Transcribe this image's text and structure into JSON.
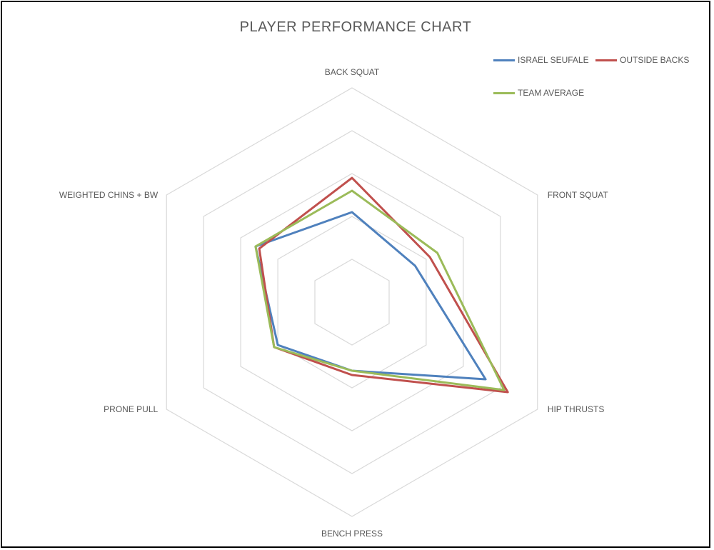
{
  "chart_data": {
    "type": "radar",
    "title": "PLAYER PERFORMANCE CHART",
    "categories": [
      "BACK SQUAT",
      "FRONT SQUAT",
      "HIP THRUSTS",
      "BENCH PRESS",
      "PRONE PULL",
      "WEIGHTED CHINS + BW"
    ],
    "rings": 5,
    "range": [
      0,
      5
    ],
    "grid": true,
    "legend_position": "top-right",
    "series": [
      {
        "name": "ISRAEL SEUFALE",
        "color": "#4f81bd",
        "values": [
          2.1,
          1.7,
          3.6,
          1.6,
          2.0,
          2.6
        ]
      },
      {
        "name": "OUTSIDE BACKS",
        "color": "#c0504d",
        "values": [
          2.9,
          2.1,
          4.2,
          1.7,
          2.1,
          2.5
        ]
      },
      {
        "name": "TEAM AVERAGE",
        "color": "#9bbb59",
        "values": [
          2.6,
          2.3,
          4.1,
          1.6,
          2.1,
          2.6
        ]
      }
    ]
  }
}
